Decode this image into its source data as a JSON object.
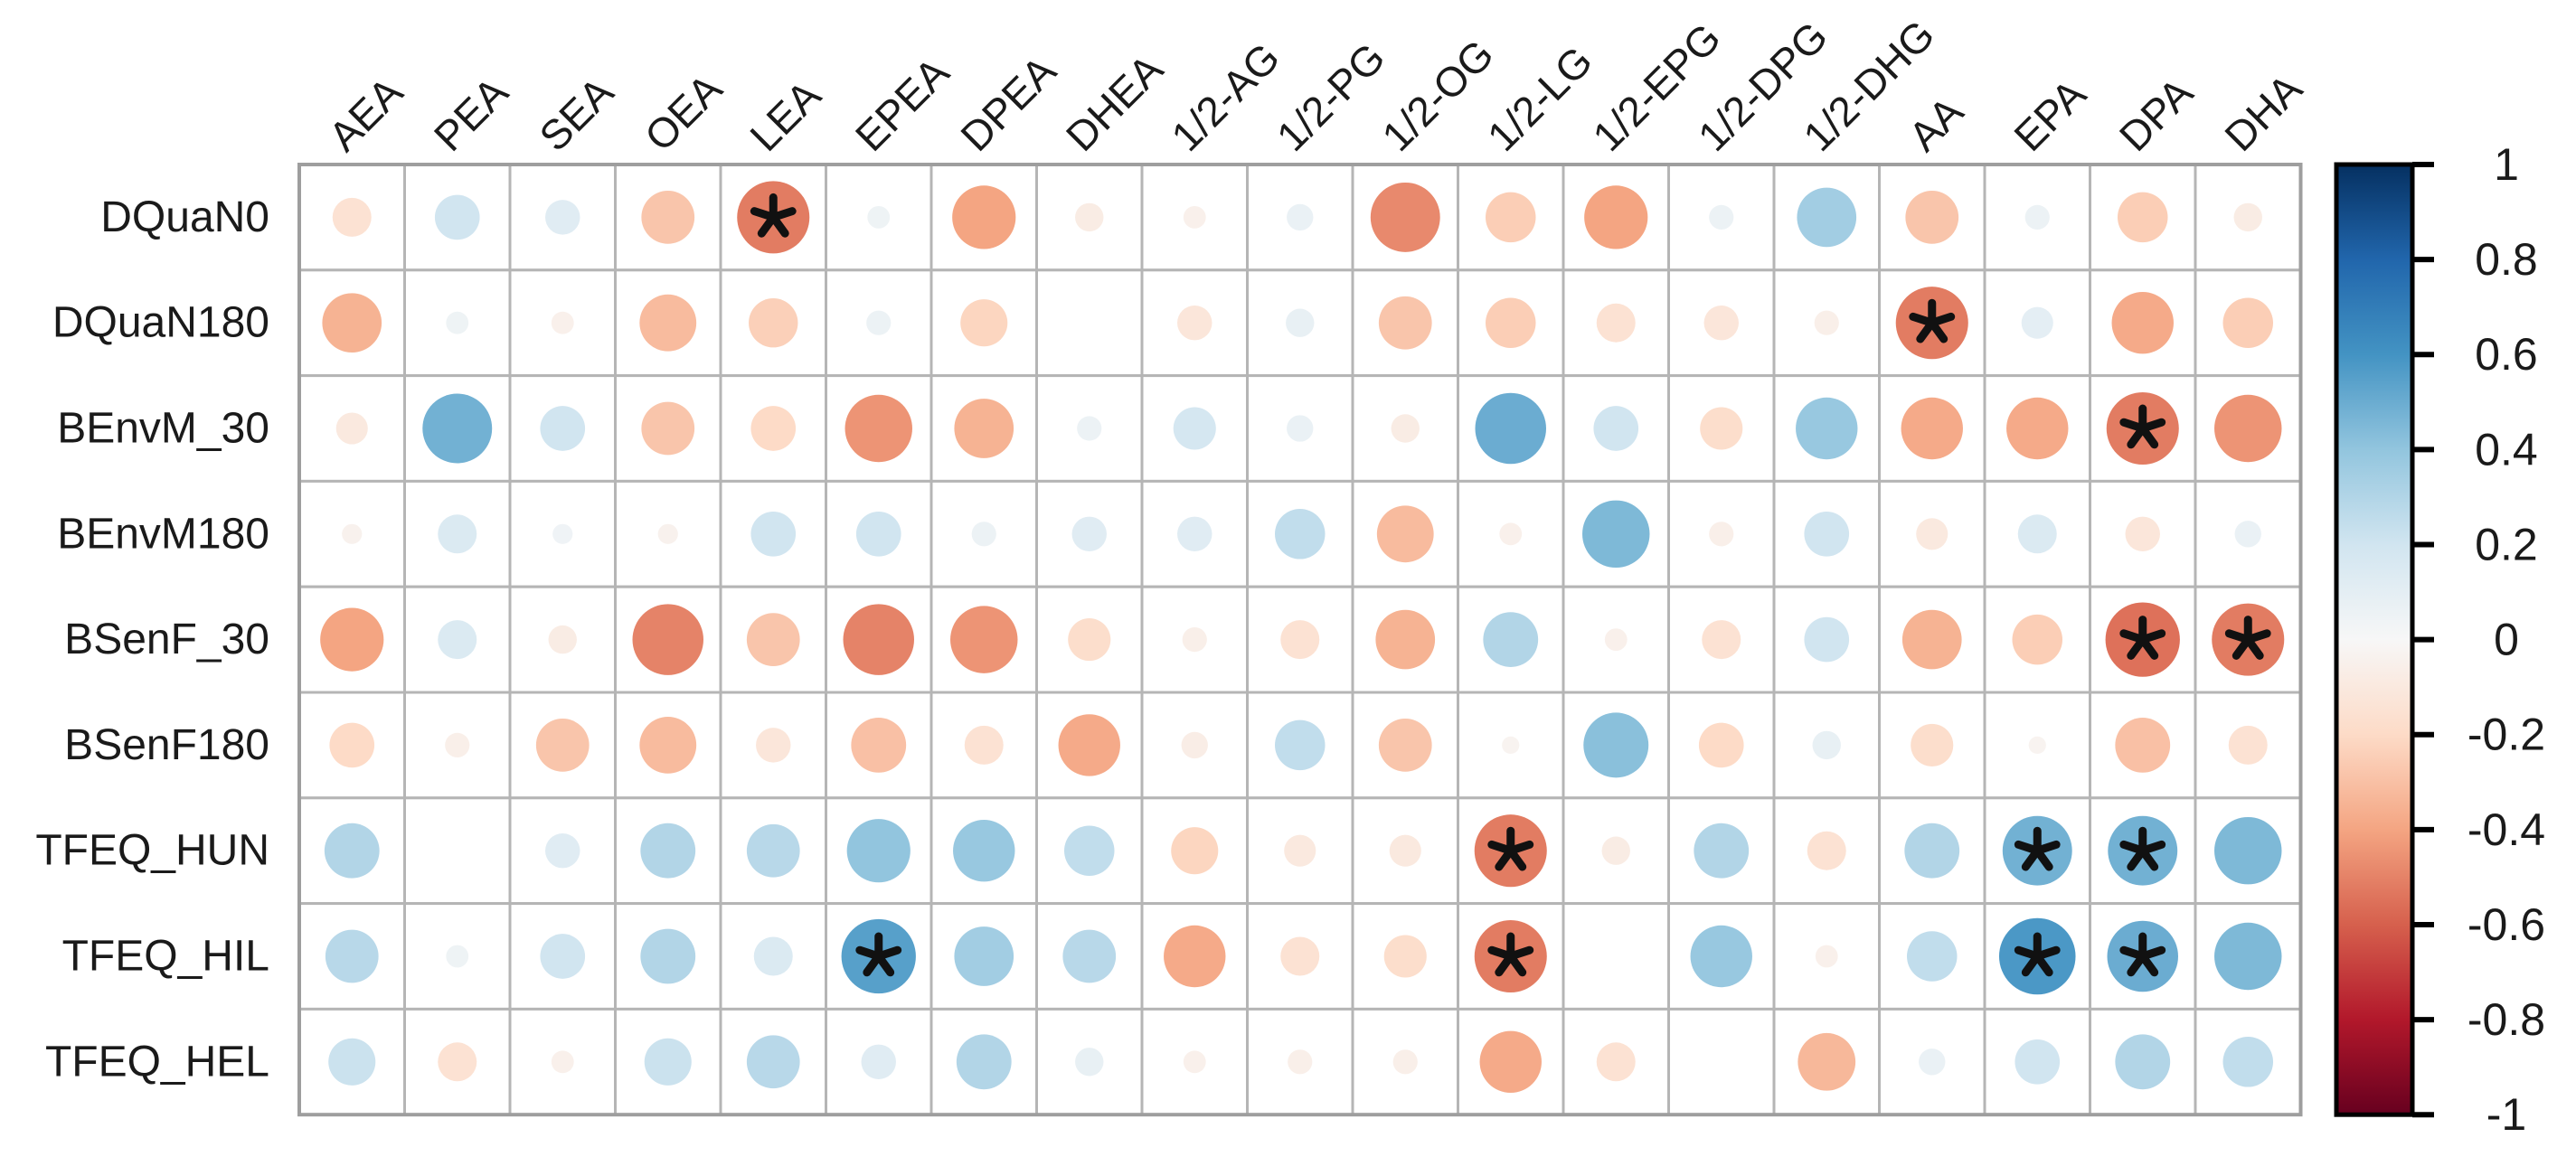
{
  "chart_data": {
    "type": "heatmap",
    "subtype": "correlation-bubble-matrix",
    "title": "",
    "rows": [
      "DQuaN0",
      "DQuaN180",
      "BEnvM_30",
      "BEnvM180",
      "BSenF_30",
      "BSenF180",
      "TFEQ_HUN",
      "TFEQ_HIL",
      "TFEQ_HEL"
    ],
    "columns": [
      "AEA",
      "PEA",
      "SEA",
      "OEA",
      "LEA",
      "EPEA",
      "DPEA",
      "DHEA",
      "1/2-AG",
      "1/2-PG",
      "1/2-OG",
      "1/2-LG",
      "1/2-EPG",
      "1/2-DPG",
      "1/2-DHG",
      "AA",
      "EPA",
      "DPA",
      "DHA"
    ],
    "values": [
      [
        -0.15,
        0.2,
        0.12,
        -0.28,
        -0.52,
        0.05,
        -0.4,
        -0.08,
        -0.05,
        0.07,
        -0.48,
        -0.25,
        -0.4,
        0.06,
        0.35,
        -0.28,
        0.06,
        -0.25,
        -0.08
      ],
      [
        -0.35,
        0.05,
        -0.05,
        -0.32,
        -0.24,
        0.06,
        -0.22,
        0.0,
        -0.12,
        0.08,
        -0.28,
        -0.25,
        -0.15,
        -0.12,
        -0.06,
        -0.52,
        0.1,
        -0.38,
        -0.25
      ],
      [
        -0.1,
        0.48,
        0.2,
        -0.28,
        -0.2,
        -0.45,
        -0.35,
        0.06,
        0.18,
        0.07,
        -0.08,
        0.5,
        0.2,
        -0.18,
        0.38,
        -0.38,
        -0.38,
        -0.52,
        -0.45
      ],
      [
        -0.04,
        0.15,
        0.04,
        -0.04,
        0.2,
        0.2,
        0.06,
        0.12,
        0.12,
        0.25,
        -0.32,
        -0.05,
        0.45,
        -0.06,
        0.2,
        -0.1,
        0.15,
        -0.12,
        0.07
      ],
      [
        -0.4,
        0.15,
        -0.08,
        -0.5,
        -0.28,
        -0.5,
        -0.45,
        -0.18,
        -0.06,
        -0.15,
        -0.35,
        0.3,
        -0.05,
        -0.15,
        0.2,
        -0.35,
        -0.25,
        -0.55,
        -0.52
      ],
      [
        -0.2,
        -0.06,
        -0.28,
        -0.32,
        -0.12,
        -0.3,
        -0.15,
        -0.38,
        -0.07,
        0.25,
        -0.28,
        -0.03,
        0.42,
        -0.2,
        0.08,
        -0.18,
        -0.03,
        -0.3,
        -0.15
      ],
      [
        0.3,
        0.0,
        0.12,
        0.3,
        0.28,
        0.4,
        0.38,
        0.25,
        -0.22,
        -0.1,
        -0.1,
        -0.52,
        -0.08,
        0.3,
        -0.15,
        0.3,
        0.48,
        0.48,
        0.45
      ],
      [
        0.28,
        0.05,
        0.2,
        0.3,
        0.15,
        0.55,
        0.35,
        0.28,
        -0.38,
        -0.15,
        -0.18,
        -0.52,
        0.0,
        0.38,
        -0.05,
        0.25,
        0.58,
        0.5,
        0.45
      ],
      [
        0.22,
        -0.15,
        -0.05,
        0.22,
        0.28,
        0.12,
        0.3,
        0.08,
        -0.05,
        -0.06,
        -0.06,
        -0.38,
        -0.15,
        0.0,
        -0.33,
        0.07,
        0.2,
        0.3,
        0.25
      ]
    ],
    "significant_cells": [
      [
        0,
        4
      ],
      [
        1,
        15
      ],
      [
        2,
        17
      ],
      [
        4,
        17
      ],
      [
        4,
        18
      ],
      [
        6,
        11
      ],
      [
        6,
        16
      ],
      [
        6,
        17
      ],
      [
        7,
        5
      ],
      [
        7,
        11
      ],
      [
        7,
        16
      ],
      [
        7,
        17
      ]
    ],
    "significance_marker": "*",
    "grid": true,
    "legend_position": "right",
    "colorbar": {
      "min": -1,
      "max": 1,
      "tick_labels": [
        "1",
        "0.8",
        "0.6",
        "0.4",
        "0.2",
        "0",
        "-0.2",
        "-0.4",
        "-0.6",
        "-0.8",
        "-1"
      ],
      "palette": "RdBu",
      "palette_stops": [
        [
          -1.0,
          "#67001f"
        ],
        [
          -0.8,
          "#b2182b"
        ],
        [
          -0.6,
          "#d6604d"
        ],
        [
          -0.4,
          "#f4a582"
        ],
        [
          -0.2,
          "#fddbc7"
        ],
        [
          0.0,
          "#f7f7f7"
        ],
        [
          0.2,
          "#d1e5f0"
        ],
        [
          0.4,
          "#92c5de"
        ],
        [
          0.6,
          "#4393c3"
        ],
        [
          0.8,
          "#2166ac"
        ],
        [
          1.0,
          "#053061"
        ]
      ]
    }
  },
  "colors": {
    "background": "#ffffff",
    "grid_line": "#b5b5b5",
    "outer_border": "#9e9e9e",
    "cell_fill": "#ffffff",
    "text": "#1a1a1a",
    "star": "#111111",
    "colorbar_border": "#000000"
  }
}
